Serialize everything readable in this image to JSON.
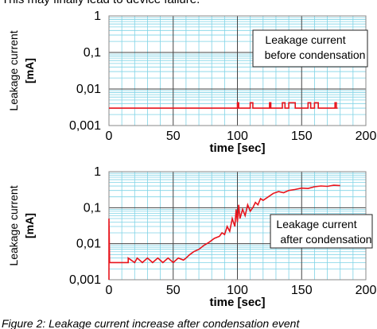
{
  "header": {
    "text": "This may finally lead to device failure."
  },
  "chart_data": [
    {
      "type": "line",
      "xlabel": "time [sec]",
      "ylabel": [
        "Leakage  current",
        "[mA]"
      ],
      "annotation": [
        "Leakage current",
        "before condensation"
      ],
      "ylog": true,
      "xlim": [
        0,
        200
      ],
      "ylim": [
        0.001,
        1
      ],
      "xticks": [
        0,
        50,
        100,
        150,
        200
      ],
      "yticks": [
        1,
        {
          "value": 0.1,
          "label": "0,1"
        },
        {
          "value": 0.01,
          "label": "0,01"
        },
        {
          "value": 0.001,
          "label": "0,001"
        }
      ],
      "grid": true,
      "series": [
        {
          "color": "#e8141c",
          "x": [
            0,
            100,
            100,
            101,
            101,
            110,
            110,
            112,
            112,
            125,
            125,
            126,
            126,
            135,
            135,
            137,
            137,
            140,
            140,
            145,
            145,
            155,
            155,
            157,
            157,
            160,
            160,
            163,
            163,
            176,
            176,
            177,
            177,
            178
          ],
          "values": [
            0.003,
            0.003,
            0.0042,
            0.0042,
            0.003,
            0.003,
            0.0042,
            0.0042,
            0.003,
            0.003,
            0.0042,
            0.0042,
            0.003,
            0.003,
            0.0042,
            0.0042,
            0.003,
            0.003,
            0.0042,
            0.0042,
            0.003,
            0.003,
            0.0042,
            0.0042,
            0.003,
            0.003,
            0.0042,
            0.0042,
            0.003,
            0.003,
            0.0042,
            0.0042,
            0.003,
            0.003
          ]
        }
      ]
    },
    {
      "type": "line",
      "xlabel": "time [sec]",
      "ylabel": [
        "Leakage  current",
        "[mA]"
      ],
      "annotation": [
        "Leakage current",
        "after condensation"
      ],
      "ylog": true,
      "xlim": [
        0,
        200
      ],
      "ylim": [
        0.001,
        1
      ],
      "xticks": [
        0,
        50,
        100,
        150,
        200
      ],
      "yticks": [
        1,
        {
          "value": 0.1,
          "label": "0,1"
        },
        {
          "value": 0.01,
          "label": "0,01"
        },
        {
          "value": 0.001,
          "label": "0,001"
        }
      ],
      "grid": true,
      "series": [
        {
          "color": "#e8141c",
          "x": [
            0,
            0,
            0.5,
            15,
            15,
            20,
            22,
            26,
            30,
            34,
            38,
            42,
            46,
            50,
            54,
            58,
            60,
            63,
            66,
            70,
            74,
            78,
            82,
            86,
            88,
            90,
            92,
            94,
            96,
            98,
            99,
            100,
            101,
            102,
            104,
            106,
            108,
            110,
            112,
            114,
            116,
            118,
            120,
            124,
            128,
            132,
            136,
            140,
            145,
            150,
            155,
            160,
            165,
            170,
            175,
            180
          ],
          "values": [
            0.001,
            0.05,
            0.003,
            0.003,
            0.004,
            0.003,
            0.004,
            0.003,
            0.004,
            0.003,
            0.004,
            0.003,
            0.004,
            0.003,
            0.004,
            0.0035,
            0.004,
            0.005,
            0.006,
            0.007,
            0.009,
            0.011,
            0.014,
            0.016,
            0.02,
            0.018,
            0.03,
            0.022,
            0.05,
            0.03,
            0.09,
            0.04,
            0.12,
            0.05,
            0.09,
            0.06,
            0.12,
            0.08,
            0.1,
            0.14,
            0.12,
            0.18,
            0.16,
            0.2,
            0.25,
            0.28,
            0.26,
            0.3,
            0.32,
            0.35,
            0.34,
            0.38,
            0.4,
            0.39,
            0.42,
            0.41
          ]
        }
      ]
    }
  ],
  "caption": "Figure 2: Leakage current increase after condensation event"
}
